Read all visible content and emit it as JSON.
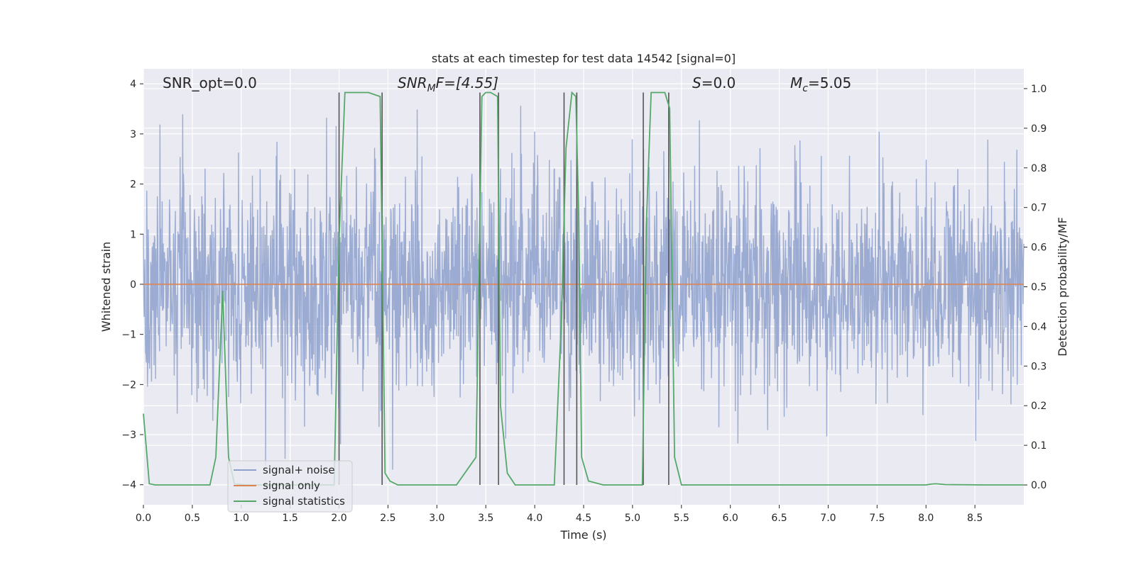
{
  "chart_data": {
    "type": "line",
    "title": "stats at each timestep for test data 14542 [signal=0]",
    "xlabel": "Time (s)",
    "ylabel_left": "Whitened strain",
    "ylabel_right": "Detection probability/MF",
    "xlim": [
      0.0,
      9.0
    ],
    "ylim_left": [
      -4.4,
      4.3
    ],
    "ylim_right": [
      -0.05,
      1.05
    ],
    "xticks": [
      0.0,
      0.5,
      1.0,
      1.5,
      2.0,
      2.5,
      3.0,
      3.5,
      4.0,
      4.5,
      5.0,
      5.5,
      6.0,
      6.5,
      7.0,
      7.5,
      8.0,
      8.5
    ],
    "xtick_labels": [
      "0.0",
      "0.5",
      "1.0",
      "1.5",
      "2.0",
      "2.5",
      "3.0",
      "3.5",
      "4.0",
      "4.5",
      "5.0",
      "5.5",
      "6.0",
      "6.5",
      "7.0",
      "7.5",
      "8.0",
      "8.5"
    ],
    "yticks_left": [
      4,
      3,
      2,
      1,
      0,
      -1,
      -2,
      -3,
      -4
    ],
    "ytick_labels_left": [
      "4",
      "3",
      "2",
      "1",
      "0",
      "−1",
      "−2",
      "−3",
      "−4"
    ],
    "yticks_right": [
      1.0,
      0.9,
      0.8,
      0.7,
      0.6,
      0.5,
      0.4,
      0.3,
      0.2,
      0.1,
      0.0
    ],
    "ytick_labels_right": [
      "1.0",
      "0.9",
      "0.8",
      "0.7",
      "0.6",
      "0.5",
      "0.4",
      "0.3",
      "0.2",
      "0.1",
      "0.0"
    ],
    "grid": true,
    "legend_position": "lower-left",
    "annotations": {
      "snr_opt": "SNR_opt=0.0",
      "snr_mf_base": "SNR",
      "snr_mf_sub": "M",
      "snr_mf_rest": "F=[4.55]",
      "s_label": "S",
      "s_value": "=0.0",
      "mc_base": "M",
      "mc_sub": "c",
      "mc_value": "=5.05"
    },
    "series": [
      {
        "name": "signal+ noise",
        "axis": "left",
        "color": "#8da0cb",
        "note_shape": "dense whitened noise, typical band about ±1.5, peaks to about ±3.5"
      },
      {
        "name": "signal only",
        "axis": "left",
        "color": "#dd8452",
        "values_constant": 0.0
      },
      {
        "name": "signal statistics",
        "axis": "right",
        "color": "#55a868",
        "x": [
          0.0,
          0.06,
          0.12,
          0.3,
          0.5,
          0.68,
          0.74,
          0.81,
          0.87,
          0.93,
          1.05,
          1.5,
          1.95,
          2.0,
          2.06,
          2.1,
          2.3,
          2.42,
          2.44,
          2.47,
          2.52,
          2.6,
          2.8,
          3.0,
          3.2,
          3.4,
          3.46,
          3.5,
          3.55,
          3.62,
          3.65,
          3.72,
          3.8,
          4.0,
          4.2,
          4.27,
          4.32,
          4.38,
          4.42,
          4.45,
          4.48,
          4.55,
          4.7,
          4.9,
          5.1,
          5.14,
          5.19,
          5.25,
          5.33,
          5.38,
          5.43,
          5.5,
          6.0,
          7.0,
          8.0,
          8.05,
          8.1,
          8.2,
          8.6,
          9.0
        ],
        "values": [
          0.18,
          0.003,
          0.0,
          0.0,
          0.0,
          0.0,
          0.07,
          0.49,
          0.07,
          0.003,
          0.0,
          0.0,
          0.0,
          0.62,
          0.99,
          0.99,
          0.99,
          0.98,
          0.6,
          0.03,
          0.01,
          0.0,
          0.0,
          0.0,
          0.0,
          0.07,
          0.98,
          0.99,
          0.99,
          0.98,
          0.2,
          0.03,
          0.0,
          0.0,
          0.0,
          0.4,
          0.85,
          0.99,
          0.98,
          0.68,
          0.07,
          0.01,
          0.0,
          0.0,
          0.0,
          0.65,
          0.99,
          0.99,
          0.99,
          0.95,
          0.07,
          0.0,
          0.0,
          0.0,
          0.0,
          0.002,
          0.003,
          0.001,
          0.0,
          0.0
        ]
      }
    ],
    "vlines": {
      "color": "#555555",
      "x": [
        2.0,
        2.44,
        3.44,
        3.63,
        4.3,
        4.43,
        5.11,
        5.37
      ],
      "y_range_right": [
        0.0,
        0.99
      ]
    }
  }
}
